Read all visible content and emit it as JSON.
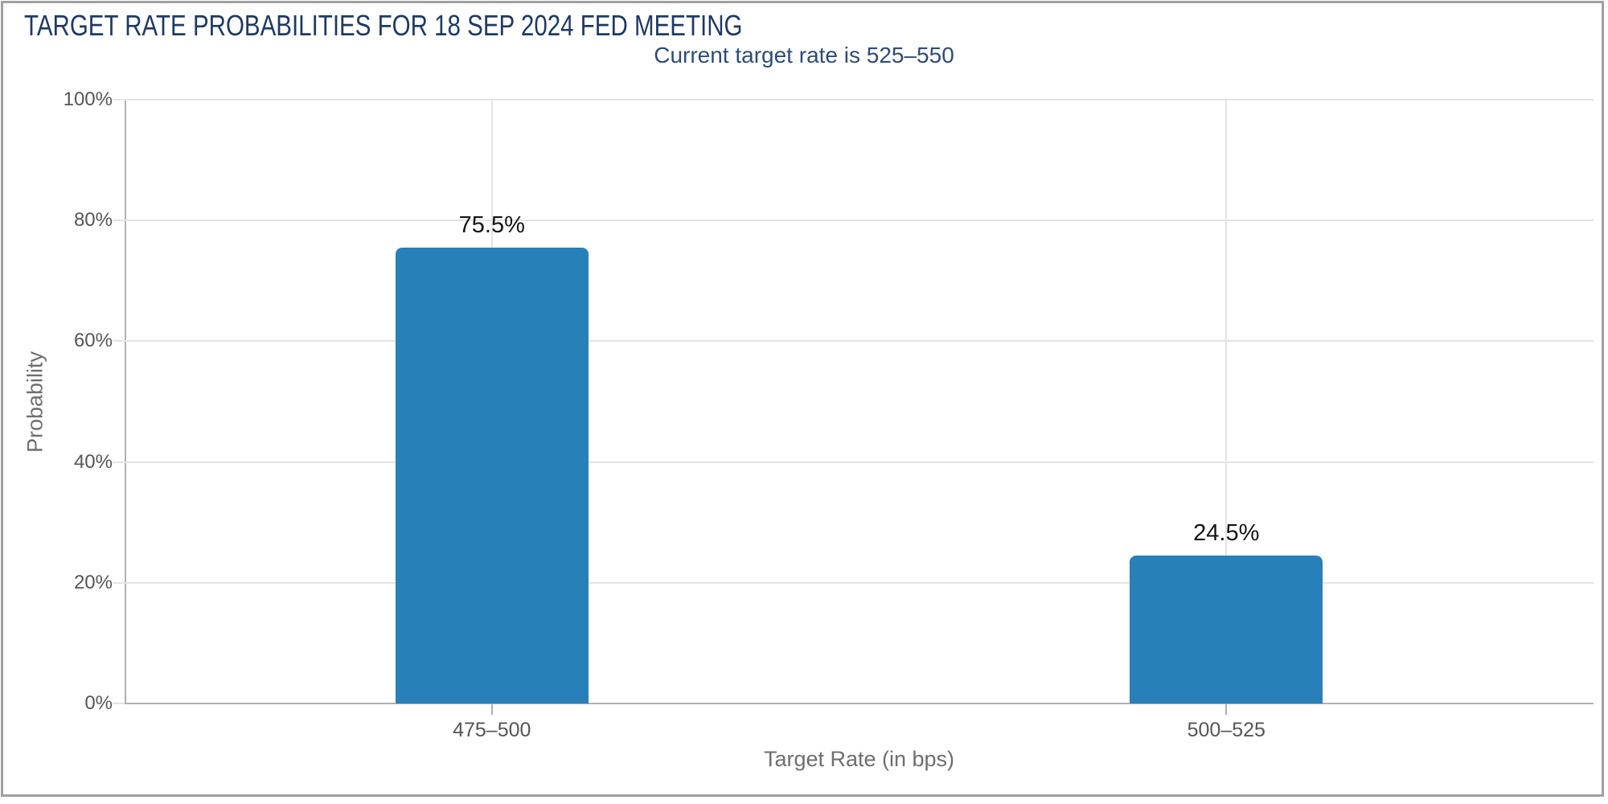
{
  "chart_data": {
    "type": "bar",
    "title": "TARGET RATE PROBABILITIES FOR 18 SEP 2024 FED MEETING",
    "subtitle": "Current target rate is 525–550",
    "categories": [
      "475–500",
      "500–525"
    ],
    "values": [
      75.5,
      24.5
    ],
    "data_labels": [
      "75.5%",
      "24.5%"
    ],
    "xlabel": "Target Rate (in bps)",
    "ylabel": "Probability",
    "ylim": [
      0,
      100
    ],
    "yticks": [
      0,
      20,
      40,
      60,
      80,
      100
    ],
    "ytick_labels": [
      "0%",
      "20%",
      "40%",
      "60%",
      "80%",
      "100%"
    ],
    "grid": true,
    "legend": false,
    "bar_color": "#2880b9"
  },
  "colors": {
    "bar": "#2880b9",
    "title": "#1f3a64",
    "subtitle": "#2e4c77",
    "grid": "#e3e3e3",
    "axis": "#b0b0b0",
    "tick_label": "#555555",
    "axis_title": "#6e6e6e",
    "data_label": "#141414",
    "frame_border": "#a0a0a0"
  }
}
